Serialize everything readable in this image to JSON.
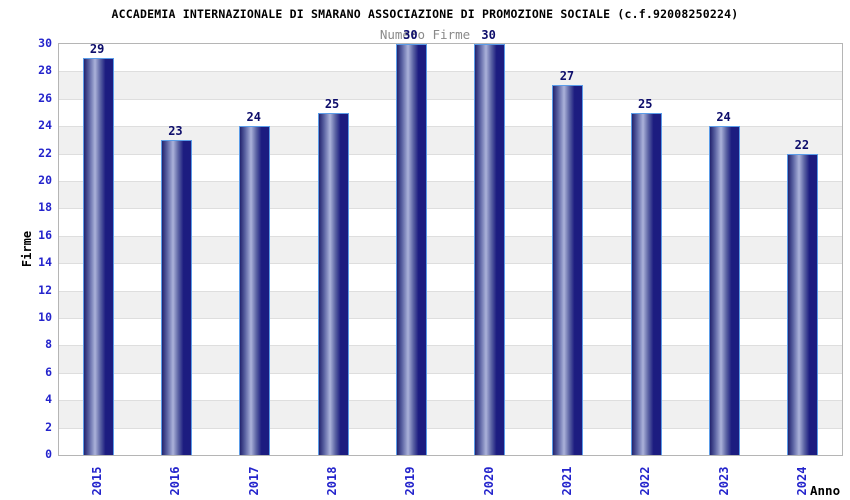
{
  "title": "ACCADEMIA INTERNAZIONALE DI SMARANO ASSOCIAZIONE DI PROMOZIONE SOCIALE (c.f.92008250224)",
  "subtitle": "Numero Firme",
  "chart_data": {
    "type": "bar",
    "title": "ACCADEMIA INTERNAZIONALE DI SMARANO ASSOCIAZIONE DI PROMOZIONE SOCIALE (c.f.92008250224)",
    "subtitle": "Numero Firme",
    "categories": [
      "2015",
      "2016",
      "2017",
      "2018",
      "2019",
      "2020",
      "2021",
      "2022",
      "2023",
      "2024"
    ],
    "values": [
      29,
      23,
      24,
      25,
      30,
      30,
      27,
      25,
      24,
      22
    ],
    "xlabel": "Anno",
    "ylabel": "Firme",
    "ylim": [
      0,
      30
    ],
    "ytick_step": 2,
    "grid": true,
    "legend": "none",
    "background_bands": "alternating white and light gray, 2 units tall, white at bottom"
  },
  "colors": {
    "background": "#ffffff",
    "title_color": "#000000",
    "subtitle_color": "#8a8a8a",
    "tick_label": "#2424cc",
    "value_label": "#0d0d6b",
    "bar_dark": "#23236e",
    "bar_mid": "#5c64a4",
    "bar_light": "#abb2da",
    "bar_dark2": "#1c1c80",
    "bar_border": "#5b9ce8",
    "band_alt": "#f0f0f0",
    "gridline": "#dedede",
    "plot_border": "#b5b5b5"
  }
}
